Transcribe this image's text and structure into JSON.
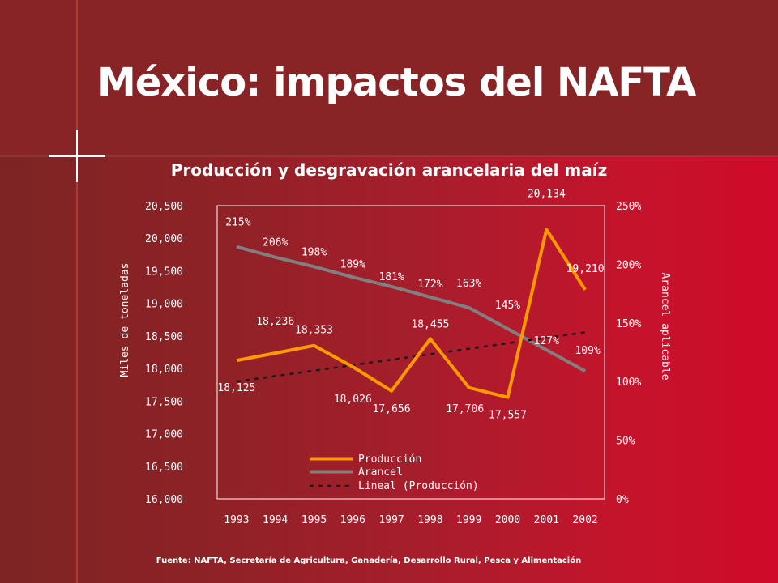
{
  "slide": {
    "title": "México: impactos del NAFTA",
    "source": "Fuente: NAFTA, Secretaría de Agricultura, Ganadería, Desarrollo Rural, Pesca y Alimentación"
  },
  "colors": {
    "produccion": "#ff9900",
    "arancel": "#808080",
    "lineal": "#1a1a1a",
    "background_band": "#882426"
  },
  "chart_data": {
    "type": "line",
    "title": "Producción y desgravación arancelaria del maíz",
    "ylabel": "Miles de toneladas",
    "y2label": "Arancel aplicable",
    "categories": [
      "1993",
      "1994",
      "1995",
      "1996",
      "1997",
      "1998",
      "1999",
      "2000",
      "2001",
      "2002"
    ],
    "ylim": [
      16000,
      20500
    ],
    "yticks": [
      "16,000",
      "16,500",
      "17,000",
      "17,500",
      "18,000",
      "18,500",
      "19,000",
      "19,500",
      "20,000",
      "20,500"
    ],
    "y2lim": [
      0,
      250
    ],
    "y2ticks": [
      "0%",
      "50%",
      "100%",
      "150%",
      "200%",
      "250%"
    ],
    "grid": false,
    "legend_position": "bottom-inside",
    "series": [
      {
        "name": "Producción",
        "axis": "left",
        "values": [
          18125,
          18236,
          18353,
          18026,
          17656,
          18455,
          17706,
          17557,
          20134,
          19210
        ],
        "labels": [
          "18,125",
          "18,236",
          "18,353",
          "18,026",
          "17,656",
          "18,455",
          "17,706",
          "17,557",
          "20,134",
          "19,210"
        ]
      },
      {
        "name": "Arancel",
        "axis": "right",
        "values": [
          215,
          206,
          198,
          189,
          181,
          172,
          163,
          145,
          127,
          109
        ],
        "labels": [
          "215%",
          "206%",
          "198%",
          "189%",
          "181%",
          "172%",
          "163%",
          "145%",
          "127%",
          "109%"
        ]
      },
      {
        "name": "Lineal (Producción)",
        "axis": "left",
        "style": "dashed",
        "values": [
          17800,
          17884,
          17968,
          18052,
          18136,
          18220,
          18304,
          18388,
          18472,
          18556
        ]
      }
    ]
  }
}
